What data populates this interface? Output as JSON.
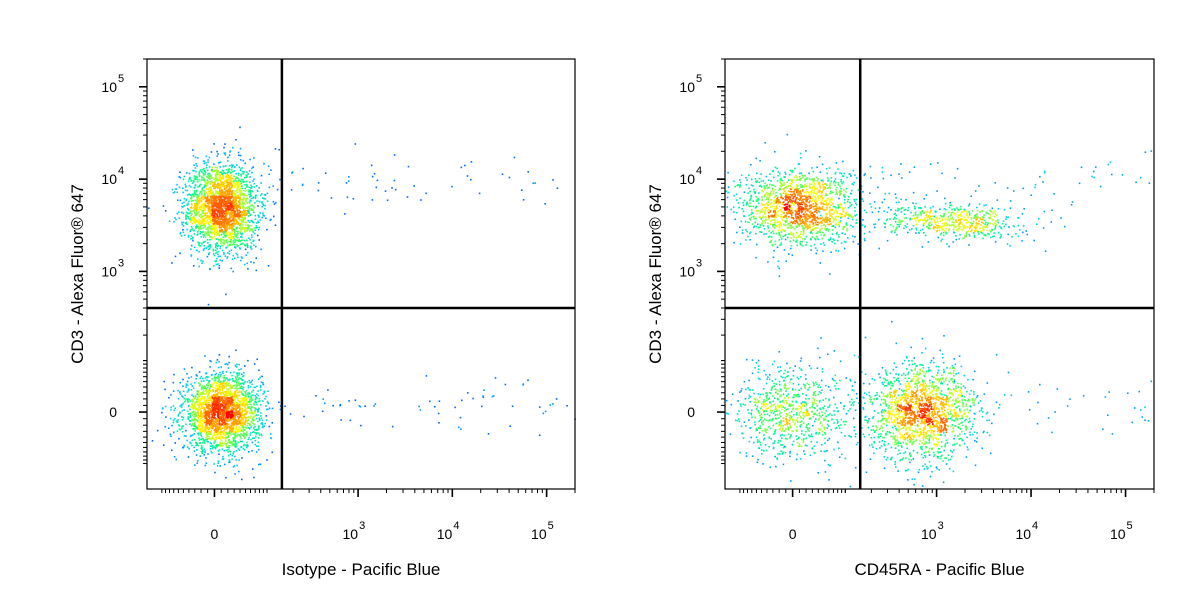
{
  "chart_data": [
    {
      "type": "scatter",
      "title": "",
      "xlabel": "Isotype - Pacific Blue",
      "ylabel": "CD3 - Alexa Fluor® 647",
      "xscale": "biexponential",
      "yscale": "biexponential",
      "x_ticks": [
        {
          "value": 0,
          "label": "0",
          "exp": ""
        },
        {
          "value": 1000,
          "label": "10",
          "exp": "3"
        },
        {
          "value": 10000,
          "label": "10",
          "exp": "4"
        },
        {
          "value": 100000,
          "label": "10",
          "exp": "5"
        }
      ],
      "y_ticks": [
        {
          "value": 0,
          "label": "0",
          "exp": ""
        },
        {
          "value": 1000,
          "label": "10",
          "exp": "3"
        },
        {
          "value": 10000,
          "label": "10",
          "exp": "4"
        },
        {
          "value": 100000,
          "label": "10",
          "exp": "5"
        }
      ],
      "quadrant_gate": {
        "x": 150,
        "y": 400
      },
      "populations": [
        {
          "x_center": 10,
          "y_center": 5000,
          "approx_share": 0.5
        },
        {
          "x_center": 10,
          "y_center": 0,
          "approx_share": 0.5
        }
      ],
      "colormap": [
        "#0000ff",
        "#00c8ff",
        "#00ff80",
        "#ffff00",
        "#ff8000",
        "#ff0000"
      ]
    },
    {
      "type": "scatter",
      "title": "",
      "xlabel": "CD45RA - Pacific Blue",
      "ylabel": "CD3 - Alexa Fluor® 647",
      "xscale": "biexponential",
      "yscale": "biexponential",
      "x_ticks": [
        {
          "value": 0,
          "label": "0",
          "exp": ""
        },
        {
          "value": 1000,
          "label": "10",
          "exp": "3"
        },
        {
          "value": 10000,
          "label": "10",
          "exp": "4"
        },
        {
          "value": 100000,
          "label": "10",
          "exp": "5"
        }
      ],
      "y_ticks": [
        {
          "value": 0,
          "label": "0",
          "exp": ""
        },
        {
          "value": 1000,
          "label": "10",
          "exp": "3"
        },
        {
          "value": 10000,
          "label": "10",
          "exp": "4"
        },
        {
          "value": 100000,
          "label": "10",
          "exp": "5"
        }
      ],
      "quadrant_gate": {
        "x": 150,
        "y": 400
      },
      "populations": [
        {
          "x_center": 10,
          "y_center": 5000,
          "approx_share": 0.33
        },
        {
          "x_center": 1500,
          "y_center": 3500,
          "approx_share": 0.12
        },
        {
          "x_center": 0,
          "y_center": 0,
          "approx_share": 0.18
        },
        {
          "x_center": 700,
          "y_center": 0,
          "approx_share": 0.37
        }
      ],
      "colormap": [
        "#0000ff",
        "#00c8ff",
        "#00ff80",
        "#ffff00",
        "#ff8000",
        "#ff0000"
      ]
    }
  ]
}
